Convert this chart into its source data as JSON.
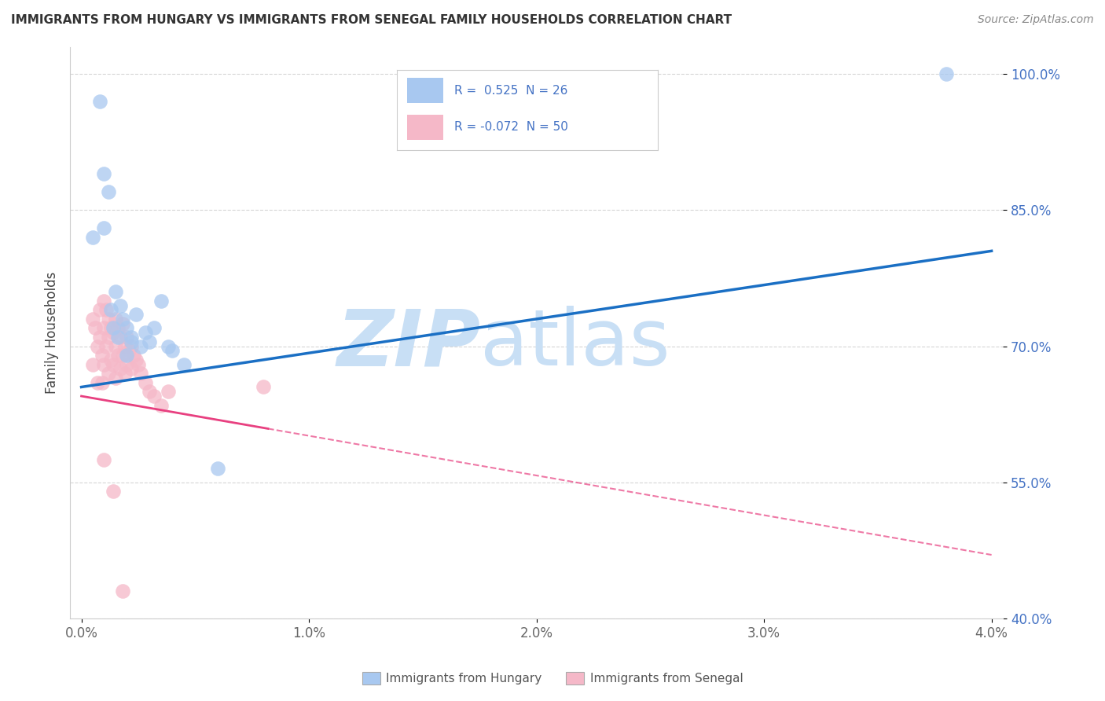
{
  "title": "IMMIGRANTS FROM HUNGARY VS IMMIGRANTS FROM SENEGAL FAMILY HOUSEHOLDS CORRELATION CHART",
  "source": "Source: ZipAtlas.com",
  "ylabel": "Family Households",
  "xlim": [
    -0.05,
    4.05
  ],
  "ylim": [
    40.0,
    103.0
  ],
  "xticks": [
    0.0,
    1.0,
    2.0,
    3.0,
    4.0
  ],
  "yticks": [
    40.0,
    55.0,
    70.0,
    85.0,
    100.0
  ],
  "xtick_labels": [
    "0.0%",
    "1.0%",
    "2.0%",
    "3.0%",
    "4.0%"
  ],
  "ytick_labels": [
    "40.0%",
    "55.0%",
    "70.0%",
    "85.0%",
    "100.0%"
  ],
  "hungary_scatter_x": [
    0.05,
    0.08,
    0.1,
    0.1,
    0.12,
    0.13,
    0.14,
    0.15,
    0.16,
    0.17,
    0.18,
    0.2,
    0.22,
    0.22,
    0.24,
    0.26,
    0.28,
    0.3,
    0.32,
    0.35,
    0.38,
    0.4,
    0.45,
    0.6,
    3.8,
    0.2
  ],
  "hungary_scatter_y": [
    82.0,
    97.0,
    89.0,
    83.0,
    87.0,
    74.0,
    72.0,
    76.0,
    71.0,
    74.5,
    73.0,
    72.0,
    71.0,
    70.5,
    73.5,
    70.0,
    71.5,
    70.5,
    72.0,
    75.0,
    70.0,
    69.5,
    68.0,
    56.5,
    100.0,
    69.0
  ],
  "senegal_scatter_x": [
    0.05,
    0.05,
    0.06,
    0.07,
    0.07,
    0.08,
    0.08,
    0.09,
    0.09,
    0.1,
    0.1,
    0.1,
    0.11,
    0.11,
    0.12,
    0.12,
    0.12,
    0.13,
    0.13,
    0.14,
    0.14,
    0.15,
    0.15,
    0.15,
    0.16,
    0.16,
    0.17,
    0.17,
    0.18,
    0.18,
    0.19,
    0.19,
    0.2,
    0.2,
    0.21,
    0.22,
    0.22,
    0.23,
    0.24,
    0.25,
    0.26,
    0.28,
    0.3,
    0.32,
    0.35,
    0.38,
    0.8,
    0.18,
    0.14,
    0.1
  ],
  "senegal_scatter_y": [
    73.0,
    68.0,
    72.0,
    70.0,
    66.0,
    74.0,
    71.0,
    69.0,
    66.0,
    75.0,
    72.0,
    68.0,
    74.0,
    70.0,
    73.0,
    71.0,
    67.0,
    72.0,
    68.5,
    71.5,
    68.0,
    73.0,
    70.0,
    66.5,
    72.0,
    69.0,
    71.0,
    67.5,
    72.5,
    69.0,
    70.0,
    67.0,
    71.0,
    68.0,
    69.5,
    70.0,
    67.5,
    69.0,
    68.5,
    68.0,
    67.0,
    66.0,
    65.0,
    64.5,
    63.5,
    65.0,
    65.5,
    43.0,
    54.0,
    57.5
  ],
  "hungary_line": {
    "x0": 0.0,
    "y0": 65.5,
    "x1": 4.0,
    "y1": 80.5
  },
  "senegal_line": {
    "x0": 0.0,
    "y0": 64.5,
    "x1": 4.0,
    "y1": 47.0
  },
  "senegal_solid_end": 0.82,
  "hungary_line_color": "#1a6fc4",
  "senegal_line_color": "#e84080",
  "hungary_scatter_color": "#a8c8f0",
  "senegal_scatter_color": "#f5b8c8",
  "watermark_zip": "ZIP",
  "watermark_atlas": "atlas",
  "watermark_color": "#c8dff5",
  "legend_r1": "R =  0.525  N = 26",
  "legend_r2": "R = -0.072  N = 50",
  "legend_color_text": "#4472c4",
  "background_color": "#ffffff",
  "grid_color": "#cccccc",
  "title_fontsize": 11,
  "scatter_size": 180
}
